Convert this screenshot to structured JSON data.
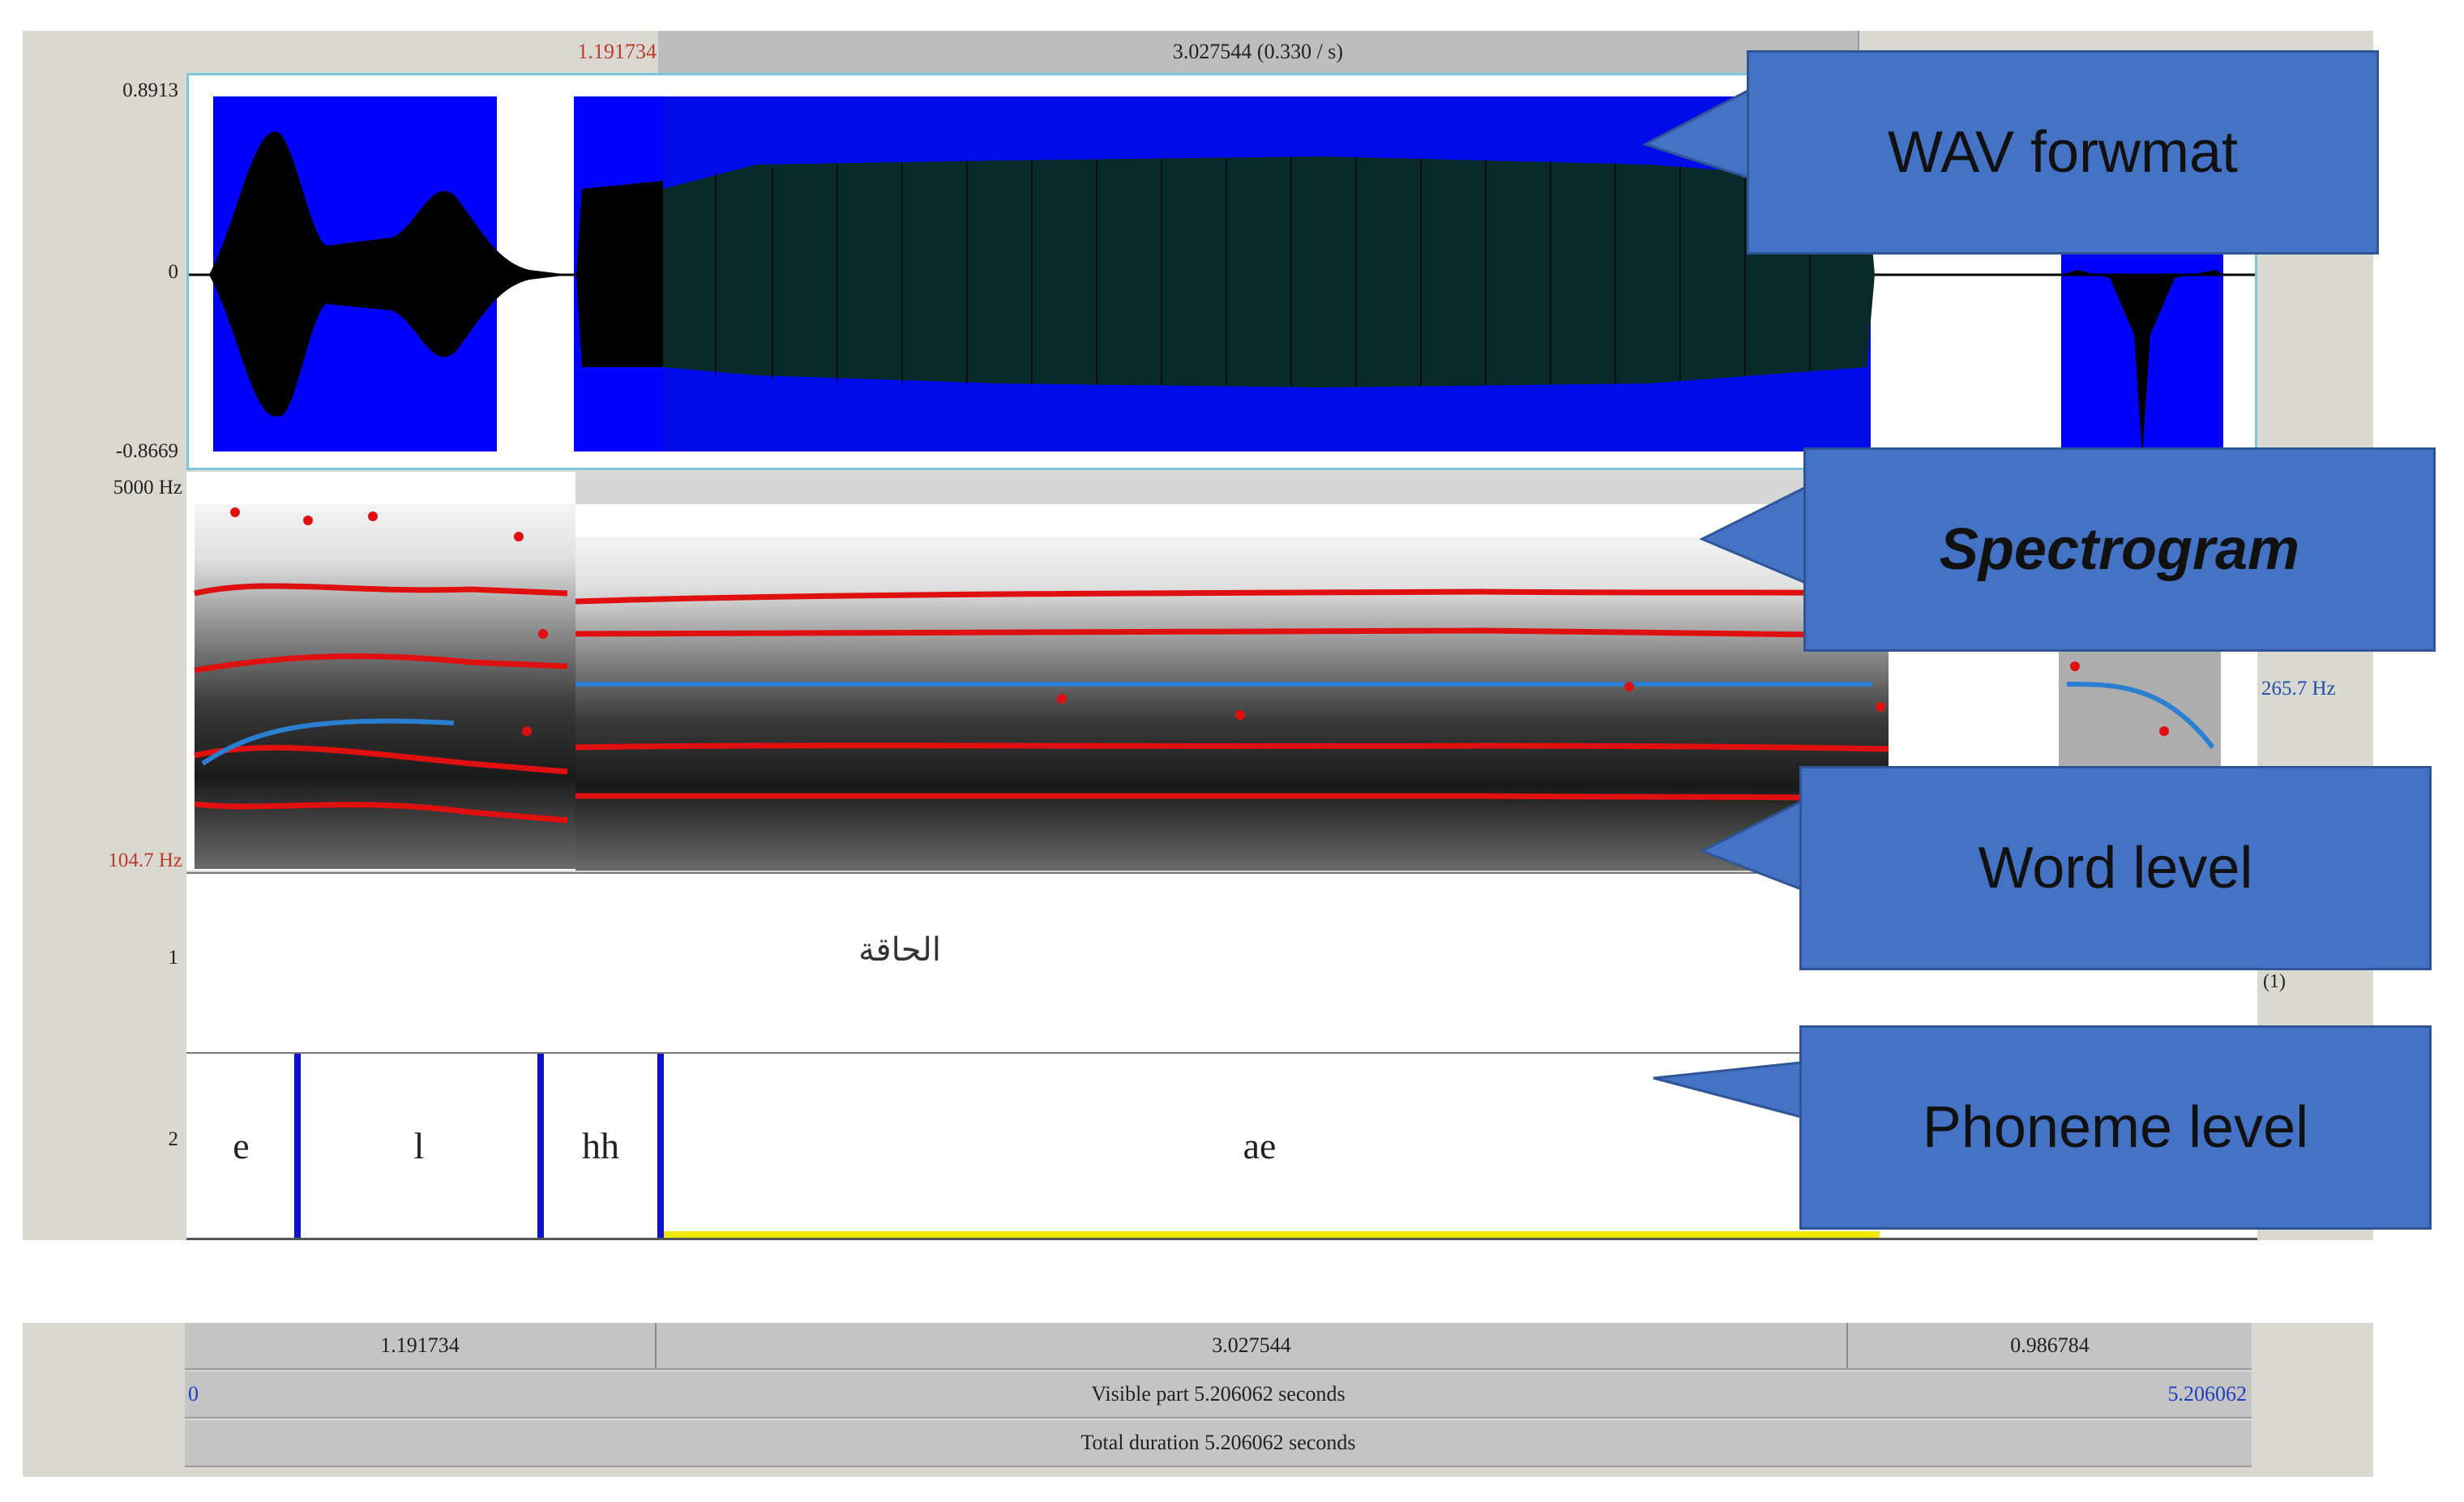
{
  "top_timeline": {
    "selection_start": "1.191734",
    "selection_label": "3.027544 (0.330 / s)"
  },
  "waveform": {
    "max_label": "0.8913",
    "zero_label": "0",
    "min_label": "-0.8669"
  },
  "spectrogram": {
    "top_freq_label": "5000 Hz",
    "bottom_freq_label": "104.7 Hz",
    "pitch_label": "265.7 Hz"
  },
  "tiers": {
    "word": {
      "number": "1",
      "text": "الحاقة",
      "right_count": "(1)"
    },
    "phoneme": {
      "number": "2",
      "segments": [
        "e",
        "l",
        "hh",
        "ae"
      ]
    }
  },
  "callouts": {
    "wav": "WAV forwmat",
    "spectrogram": "Spectrogram",
    "word": "Word level",
    "phoneme": "Phoneme level"
  },
  "bottom_timeline": {
    "seg1": "1.191734",
    "seg2": "3.027544",
    "seg3": "0.986784",
    "visible_start": "0",
    "visible_label": "Visible part 5.206062 seconds",
    "visible_end": "5.206062",
    "total_label": "Total duration 5.206062 seconds"
  },
  "colors": {
    "selection_blue": "#0000ff",
    "waveform_dark": "#0a2a2a",
    "formant_red": "#e01010",
    "pitch_blue": "#2a7fd0",
    "boundary_blue": "#1010d0",
    "callout_fill": "#4472c4"
  }
}
